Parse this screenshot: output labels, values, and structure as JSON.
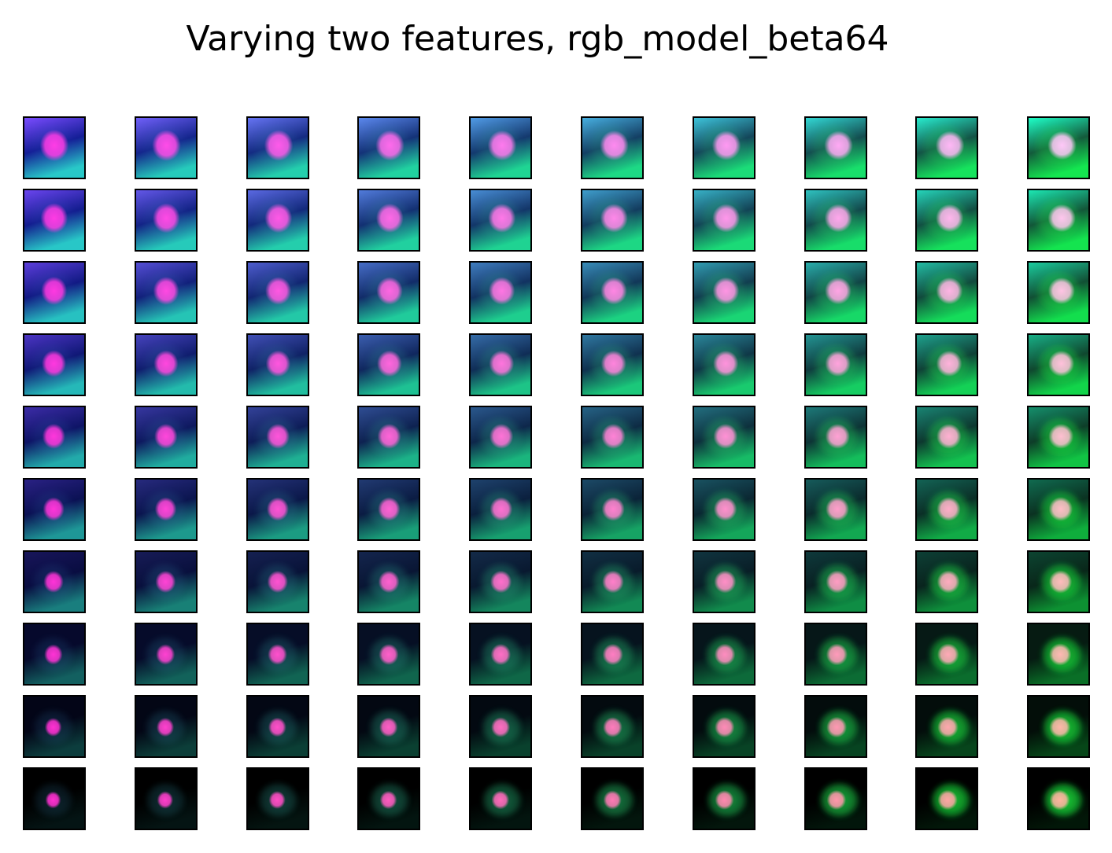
{
  "title": "Varying two features, rgb_model_beta64",
  "grid": {
    "rows": 10,
    "cols": 10
  },
  "colors": {
    "background": "#ffffff",
    "border": "#000000",
    "top_left_bg": "#7a4cff",
    "top_right_bg": "#1effc8",
    "bottom_left_bg": "#000000",
    "bottom_right_bg": "#000000",
    "top_left_blob": "#ff3ce6",
    "top_right_blob": "#ffc8f8",
    "bottom_left_blob": "#ff2fd0",
    "bottom_right_blob": "#ffb4a0",
    "cell_green": "#18e53c",
    "cell_blue": "#3c6ed0"
  }
}
